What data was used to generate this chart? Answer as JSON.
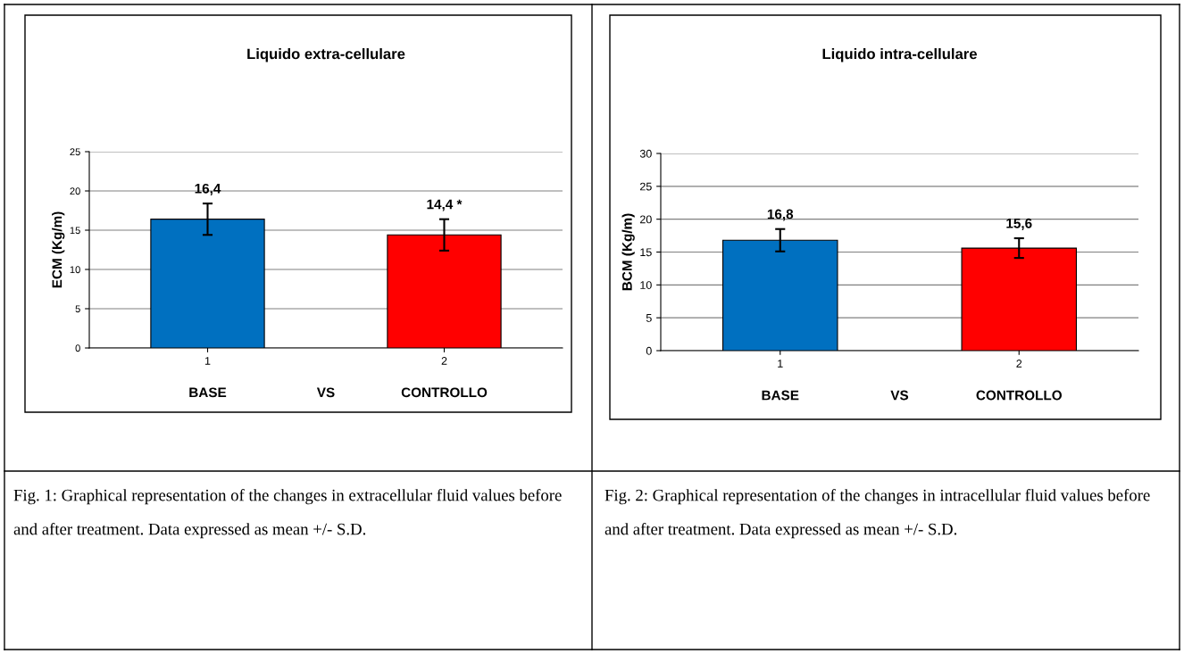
{
  "chart_data": [
    {
      "type": "bar",
      "title": "Liquido extra-cellulare",
      "xlabel": "BASE VS CONTROLLO",
      "ylabel": "ECM (Kg/m)",
      "categories": [
        "1",
        "2"
      ],
      "values": [
        16.4,
        14.4
      ],
      "colors": [
        "#0070c0",
        "#ff0000"
      ],
      "errors": [
        2.0,
        2.0
      ],
      "value_labels": [
        "16,4",
        "14,4 *"
      ],
      "ylim": [
        0,
        25
      ],
      "yticks": [
        0,
        5,
        10,
        15,
        20,
        25
      ],
      "grid": "y",
      "annotations": [
        "Fig. 1: Graphical representation of the changes in extracellular fluid values before and after treatment. Data expressed as mean +/- S.D."
      ]
    },
    {
      "type": "bar",
      "title": "Liquido intra-cellulare",
      "xlabel": "BASE VS CONTROLLO",
      "ylabel": "BCM (Kg/m)",
      "categories": [
        "1",
        "2"
      ],
      "values": [
        16.8,
        15.6
      ],
      "colors": [
        "#0070c0",
        "#ff0000"
      ],
      "errors": [
        1.7,
        1.5
      ],
      "value_labels": [
        "16,8",
        "15,6"
      ],
      "ylim": [
        0,
        30
      ],
      "yticks": [
        0,
        5,
        10,
        15,
        20,
        25,
        30
      ],
      "grid": "y",
      "annotations": [
        "Fig. 2: Graphical representation of the changes in intracellular fluid values before and after treatment. Data expressed as mean +/- S.D."
      ]
    }
  ]
}
